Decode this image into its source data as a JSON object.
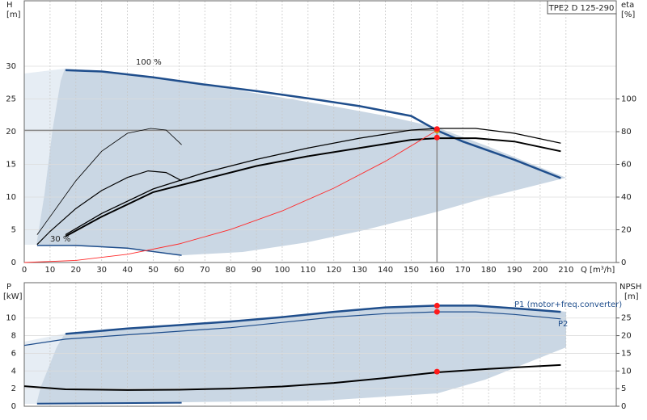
{
  "chart_data": [
    {
      "type": "line",
      "title": "TPE2 D 125-290",
      "x_label": "Q [m³/h]",
      "y_label": {
        "name": "H",
        "unit": "[m]"
      },
      "y2_label": {
        "name": "eta",
        "unit": "[%]"
      },
      "annotations": [
        "100 %",
        "30 %"
      ],
      "xlim": [
        0,
        229.5
      ],
      "xticks": [
        0,
        10,
        20,
        30,
        40,
        50,
        60,
        70,
        80,
        90,
        100,
        110,
        120,
        130,
        140,
        150,
        160,
        170,
        180,
        190,
        200,
        210
      ],
      "xtick_labels": true,
      "ylim": [
        0,
        40
      ],
      "yticks": [
        0,
        5,
        10,
        15,
        20,
        25,
        30
      ],
      "y2lim": [
        0,
        160
      ],
      "y2ticks": [
        0,
        20,
        40,
        60,
        80,
        100
      ],
      "grid": true,
      "duty_point": {
        "x": 160,
        "y": 20.2
      },
      "series": [
        {
          "color": "#1f4e8c",
          "width": 2.5,
          "x": [
            16,
            30,
            50,
            70,
            90,
            110,
            130,
            150,
            160,
            170,
            190,
            208
          ],
          "values": [
            29.4,
            29.2,
            28.3,
            27.2,
            26.2,
            25.1,
            23.9,
            22.4,
            20.2,
            18.5,
            15.7,
            12.9
          ]
        },
        {
          "color": "#1f4e8c",
          "width": 1.5,
          "x": [
            5,
            20,
            40,
            61
          ],
          "values": [
            2.6,
            2.6,
            2.2,
            1.1
          ]
        },
        {
          "color": "#000000",
          "width": 2,
          "axis": "y2",
          "x": [
            16,
            30,
            50,
            70,
            90,
            110,
            130,
            150,
            160,
            175,
            190,
            208
          ],
          "values": [
            16,
            28,
            43,
            51,
            59,
            65,
            70,
            75,
            76,
            76,
            74,
            68
          ]
        },
        {
          "color": "#000000",
          "width": 1.3,
          "axis": "y2",
          "x": [
            16,
            30,
            50,
            70,
            90,
            110,
            130,
            150,
            160,
            175,
            190,
            208
          ],
          "values": [
            17,
            30,
            45,
            55,
            63,
            70,
            76,
            81,
            82,
            82,
            79,
            73
          ]
        },
        {
          "color": "#000000",
          "width": 1.2,
          "axis": "y2",
          "x": [
            5,
            10,
            20,
            30,
            40,
            48,
            55,
            61
          ],
          "values": [
            11,
            19,
            33,
            44,
            52,
            56,
            55,
            50
          ]
        },
        {
          "color": "#000000",
          "width": 0.8,
          "axis": "y2",
          "x": [
            5,
            10,
            20,
            30,
            40,
            49,
            55,
            61
          ],
          "values": [
            17,
            28,
            50,
            68,
            79,
            82,
            81,
            72
          ]
        },
        {
          "color": "#ff2a2a",
          "width": 0.9,
          "x": [
            0,
            20,
            40,
            60,
            80,
            100,
            120,
            140,
            160
          ],
          "values": [
            0,
            0.32,
            1.26,
            2.84,
            5.05,
            7.89,
            11.36,
            15.47,
            20.2
          ]
        }
      ],
      "markers": [
        {
          "x": 160,
          "y": 20.4,
          "axis": "y"
        },
        {
          "x": 160,
          "y": 19.1,
          "axis": "y"
        }
      ]
    },
    {
      "type": "line",
      "y_label": {
        "name": "P",
        "unit": "[kW]"
      },
      "y2_label": {
        "name": "NPSH",
        "unit": "[m]"
      },
      "annotations": [
        "P1 (motor+freq.converter)",
        "P2"
      ],
      "xlim": [
        0,
        229.5
      ],
      "xticks": [
        0,
        10,
        20,
        30,
        40,
        50,
        60,
        70,
        80,
        90,
        100,
        110,
        120,
        130,
        140,
        150,
        160,
        170,
        180,
        190,
        200,
        210
      ],
      "xtick_labels": false,
      "ylim": [
        0,
        14
      ],
      "yticks": [
        0,
        2,
        4,
        6,
        8,
        10
      ],
      "y2lim": [
        0,
        35
      ],
      "y2ticks": [
        0,
        5,
        10,
        15,
        20,
        25
      ],
      "grid": true,
      "series": [
        {
          "color": "#1f4e8c",
          "width": 2.5,
          "x": [
            16,
            40,
            60,
            80,
            100,
            120,
            140,
            160,
            175,
            190,
            208
          ],
          "values": [
            8.2,
            8.8,
            9.2,
            9.6,
            10.1,
            10.7,
            11.2,
            11.4,
            11.4,
            11.1,
            10.7
          ]
        },
        {
          "color": "#1f4e8c",
          "width": 1.2,
          "x": [
            0,
            16,
            40,
            60,
            80,
            100,
            120,
            140,
            160,
            175,
            190,
            208
          ],
          "values": [
            6.9,
            7.6,
            8.1,
            8.5,
            8.9,
            9.5,
            10.1,
            10.5,
            10.7,
            10.7,
            10.4,
            9.9
          ]
        },
        {
          "color": "#000000",
          "width": 2,
          "axis": "y2",
          "x": [
            0,
            16,
            40,
            60,
            80,
            100,
            120,
            140,
            160,
            180,
            200,
            208
          ],
          "values": [
            5.7,
            4.8,
            4.6,
            4.7,
            5.0,
            5.6,
            6.6,
            8.0,
            9.6,
            10.6,
            11.4,
            11.7
          ]
        },
        {
          "color": "#1f4e8c",
          "width": 2,
          "x": [
            5,
            30,
            61
          ],
          "values": [
            0.3,
            0.35,
            0.4
          ]
        }
      ],
      "markers": [
        {
          "x": 160,
          "y": 11.4,
          "axis": "y"
        },
        {
          "x": 160,
          "y": 10.7,
          "axis": "y"
        },
        {
          "x": 160,
          "y": 9.8,
          "axis": "y2"
        }
      ]
    }
  ]
}
